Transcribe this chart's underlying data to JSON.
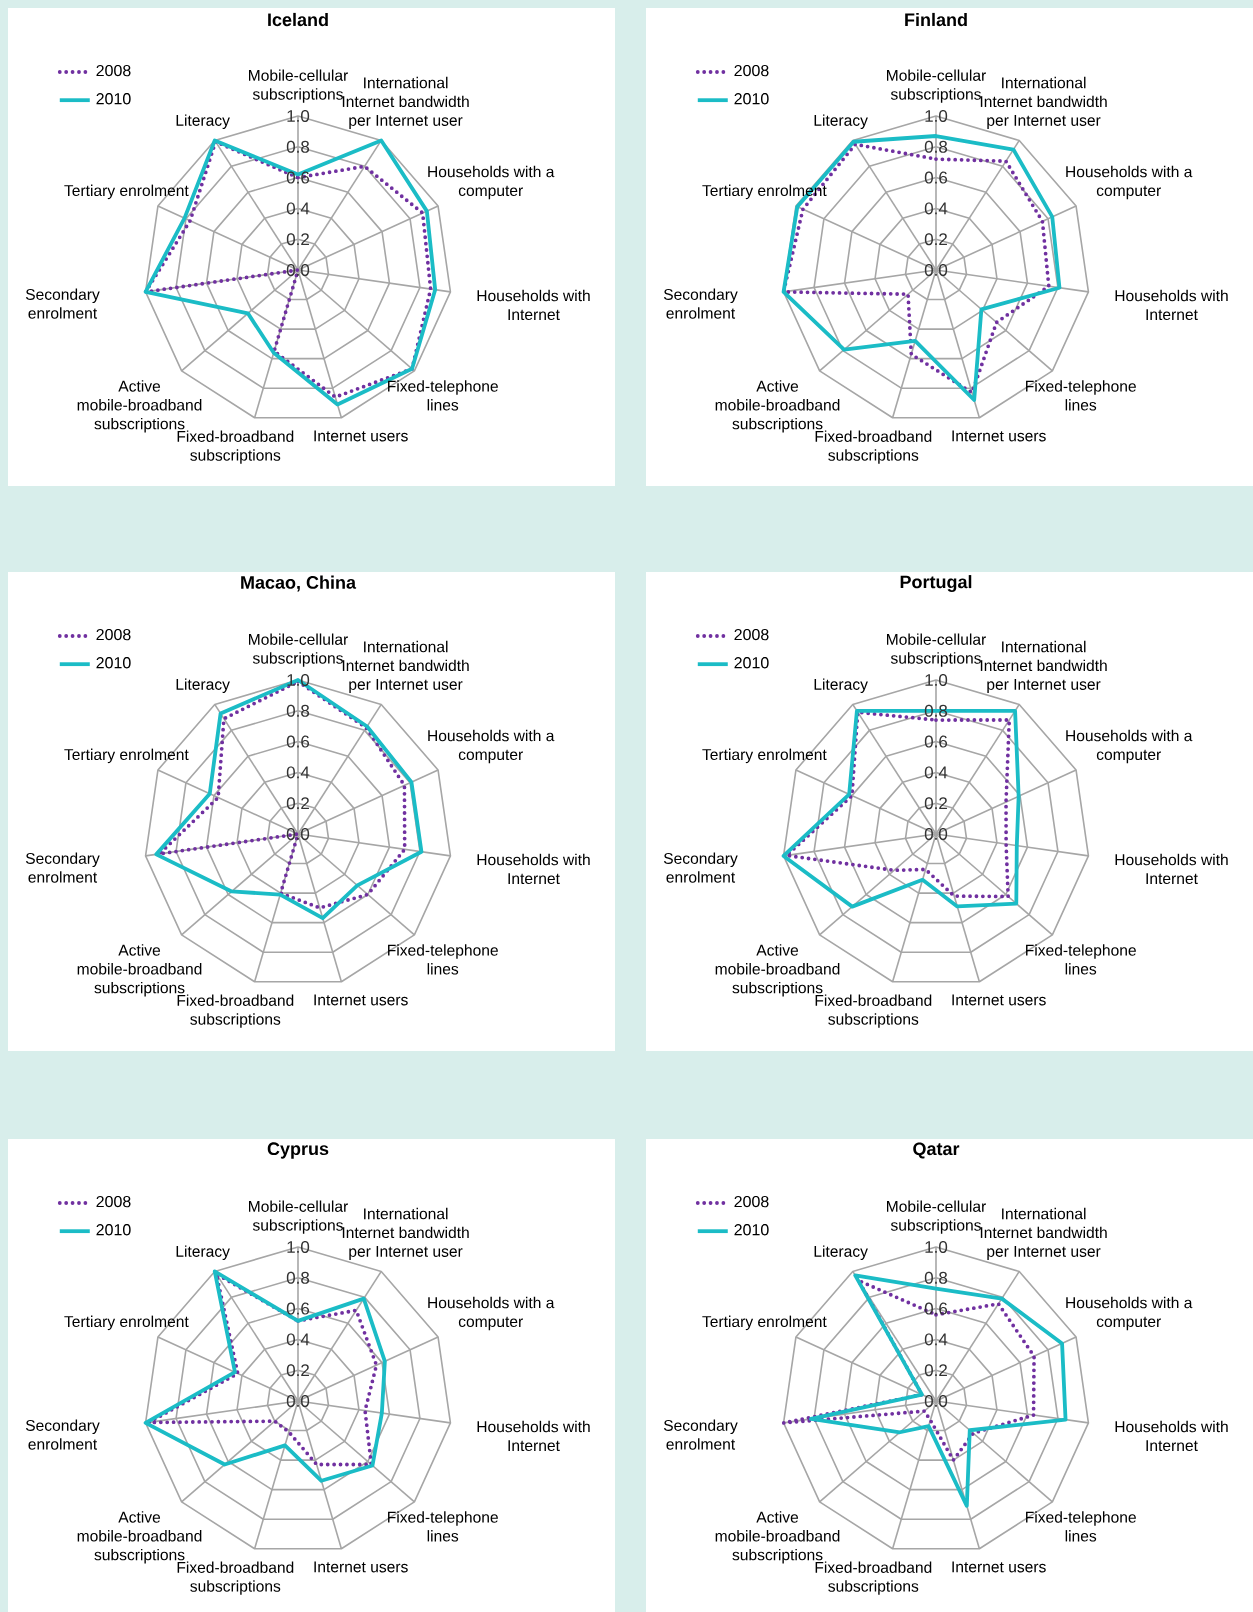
{
  "chart_data": [
    {
      "type": "radar",
      "title": "Iceland",
      "categories": [
        "Mobile-cellular subscriptions",
        "International Internet bandwidth per Internet user",
        "Households with a computer",
        "Households with Internet",
        "Fixed-telephone lines",
        "Internet users",
        "Fixed-broadband subscriptions",
        "Active mobile-broadband subscriptions",
        "Secondary enrolment",
        "Tertiary enrolment",
        "Literacy"
      ],
      "series": [
        {
          "name": "2008",
          "color": "#7030a0",
          "line_style": "dotted",
          "values": [
            0.6,
            0.8,
            0.89,
            0.87,
            0.98,
            0.86,
            0.55,
            0,
            1.0,
            0.77,
            0.99
          ]
        },
        {
          "name": "2010",
          "color": "#1bbcc6",
          "line_style": "solid",
          "values": [
            0.62,
            1.0,
            0.92,
            0.9,
            0.98,
            0.91,
            0.56,
            0.43,
            1.0,
            0.81,
            1.0
          ]
        }
      ],
      "ylim": [
        0,
        1
      ],
      "yticks": [
        {
          "value": 0,
          "label": "0.0"
        },
        {
          "value": 0.2,
          "label": "0.2"
        },
        {
          "value": 0.4,
          "label": "0.4"
        },
        {
          "value": 0.6,
          "label": "0.6"
        },
        {
          "value": 0.8,
          "label": "0.8"
        },
        {
          "value": 1,
          "label": "1.0"
        }
      ],
      "grid": true,
      "legend": "top left"
    },
    {
      "type": "radar",
      "title": "Finland",
      "categories": [
        "Mobile-cellular subscriptions",
        "International Internet bandwidth per Internet user",
        "Households with a computer",
        "Households with Internet",
        "Fixed-telephone lines",
        "Internet users",
        "Fixed-broadband subscriptions",
        "Active mobile-broadband subscriptions",
        "Secondary enrolment",
        "Tertiary enrolment",
        "Literacy"
      ],
      "series": [
        {
          "name": "2008",
          "color": "#7030a0",
          "line_style": "dotted",
          "values": [
            0.72,
            0.84,
            0.76,
            0.74,
            0.52,
            0.83,
            0.57,
            0.24,
            1.0,
            0.95,
            0.97
          ]
        },
        {
          "name": "2010",
          "color": "#1bbcc6",
          "line_style": "solid",
          "values": [
            0.87,
            0.93,
            0.83,
            0.81,
            0.39,
            0.88,
            0.48,
            0.79,
            1.0,
            0.99,
            0.99
          ]
        }
      ],
      "ylim": [
        0,
        1
      ],
      "yticks": [
        {
          "value": 0,
          "label": "0.0"
        },
        {
          "value": 0.2,
          "label": "0.2"
        },
        {
          "value": 0.4,
          "label": "0.4"
        },
        {
          "value": 0.6,
          "label": "0.6"
        },
        {
          "value": 0.8,
          "label": "0.8"
        },
        {
          "value": 1,
          "label": "1.0"
        }
      ],
      "grid": true,
      "legend": "top left"
    },
    {
      "type": "radar",
      "title": "Macao, China",
      "categories": [
        "Mobile-cellular subscriptions",
        "International Internet bandwidth per Internet user",
        "Households with a computer",
        "Households with Internet",
        "Fixed-telephone lines",
        "Internet users",
        "Fixed-broadband subscriptions",
        "Active mobile-broadband subscriptions",
        "Secondary enrolment",
        "Tertiary enrolment",
        "Literacy"
      ],
      "series": [
        {
          "name": "2008",
          "color": "#7030a0",
          "line_style": "dotted",
          "values": [
            0.99,
            0.82,
            0.76,
            0.7,
            0.6,
            0.5,
            0.4,
            0,
            0.91,
            0.57,
            0.89
          ]
        },
        {
          "name": "2010",
          "color": "#1bbcc6",
          "line_style": "solid",
          "values": [
            1.0,
            0.83,
            0.81,
            0.81,
            0.51,
            0.57,
            0.41,
            0.57,
            0.93,
            0.63,
            0.93
          ]
        }
      ],
      "ylim": [
        0,
        1
      ],
      "yticks": [
        {
          "value": 0,
          "label": "0.0"
        },
        {
          "value": 0.2,
          "label": "0.2"
        },
        {
          "value": 0.4,
          "label": "0.4"
        },
        {
          "value": 0.6,
          "label": "0.6"
        },
        {
          "value": 0.8,
          "label": "0.8"
        },
        {
          "value": 1,
          "label": "1.0"
        }
      ],
      "grid": true,
      "legend": "top left"
    },
    {
      "type": "radar",
      "title": "Portugal",
      "categories": [
        "Mobile-cellular subscriptions",
        "International Internet bandwidth per Internet user",
        "Households with a computer",
        "Households with Internet",
        "Fixed-telephone lines",
        "Internet users",
        "Fixed-broadband subscriptions",
        "Active mobile-broadband subscriptions",
        "Secondary enrolment",
        "Tertiary enrolment",
        "Literacy"
      ],
      "series": [
        {
          "name": "2008",
          "color": "#7030a0",
          "line_style": "dotted",
          "values": [
            0.74,
            0.88,
            0.5,
            0.46,
            0.62,
            0.42,
            0.24,
            0.36,
            0.98,
            0.6,
            0.94
          ]
        },
        {
          "name": "2010",
          "color": "#1bbcc6",
          "line_style": "solid",
          "values": [
            0.8,
            0.95,
            0.59,
            0.53,
            0.69,
            0.49,
            0.31,
            0.72,
            1.0,
            0.62,
            0.95
          ]
        }
      ],
      "ylim": [
        0,
        1
      ],
      "yticks": [
        {
          "value": 0,
          "label": "0.0"
        },
        {
          "value": 0.2,
          "label": "0.2"
        },
        {
          "value": 0.4,
          "label": "0.4"
        },
        {
          "value": 0.6,
          "label": "0.6"
        },
        {
          "value": 0.8,
          "label": "0.8"
        },
        {
          "value": 1,
          "label": "1.0"
        }
      ],
      "grid": true,
      "legend": "top left"
    },
    {
      "type": "radar",
      "title": "Cyprus",
      "categories": [
        "Mobile-cellular subscriptions",
        "International Internet bandwidth per Internet user",
        "Households with a computer",
        "Households with Internet",
        "Fixed-telephone lines",
        "Internet users",
        "Fixed-broadband subscriptions",
        "Active mobile-broadband subscriptions",
        "Secondary enrolment",
        "Tertiary enrolment",
        "Literacy"
      ],
      "series": [
        {
          "name": "2008",
          "color": "#7030a0",
          "line_style": "dotted",
          "values": [
            0.52,
            0.7,
            0.56,
            0.44,
            0.63,
            0.43,
            0.21,
            0.2,
            0.98,
            0.43,
            0.98
          ]
        },
        {
          "name": "2010",
          "color": "#1bbcc6",
          "line_style": "solid",
          "values": [
            0.52,
            0.79,
            0.62,
            0.55,
            0.64,
            0.54,
            0.3,
            0.63,
            1.0,
            0.45,
            1.0
          ]
        }
      ],
      "ylim": [
        0,
        1
      ],
      "yticks": [
        {
          "value": 0,
          "label": "0.0"
        },
        {
          "value": 0.2,
          "label": "0.2"
        },
        {
          "value": 0.4,
          "label": "0.4"
        },
        {
          "value": 0.6,
          "label": "0.6"
        },
        {
          "value": 0.8,
          "label": "0.8"
        },
        {
          "value": 1,
          "label": "1.0"
        }
      ],
      "grid": true,
      "legend": "top left"
    },
    {
      "type": "radar",
      "title": "Qatar",
      "categories": [
        "Mobile-cellular subscriptions",
        "International Internet bandwidth per Internet user",
        "Households with a computer",
        "Households with Internet",
        "Fixed-telephone lines",
        "Internet users",
        "Fixed-broadband subscriptions",
        "Active mobile-broadband subscriptions",
        "Secondary enrolment",
        "Tertiary enrolment",
        "Literacy"
      ],
      "series": [
        {
          "name": "2008",
          "color": "#7030a0",
          "line_style": "dotted",
          "values": [
            0.56,
            0.75,
            0.7,
            0.64,
            0.32,
            0.4,
            0.13,
            0.1,
            1.0,
            0.1,
            0.93
          ]
        },
        {
          "name": "2010",
          "color": "#1bbcc6",
          "line_style": "solid",
          "values": [
            0.73,
            0.79,
            0.9,
            0.85,
            0.29,
            0.71,
            0.17,
            0.31,
            0.82,
            0.1,
            0.97
          ]
        }
      ],
      "ylim": [
        0,
        1
      ],
      "yticks": [
        {
          "value": 0,
          "label": "0.0"
        },
        {
          "value": 0.2,
          "label": "0.2"
        },
        {
          "value": 0.4,
          "label": "0.4"
        },
        {
          "value": 0.6,
          "label": "0.6"
        },
        {
          "value": 0.8,
          "label": "0.8"
        },
        {
          "value": 1,
          "label": "1.0"
        }
      ],
      "grid": true,
      "legend": "top left"
    }
  ]
}
